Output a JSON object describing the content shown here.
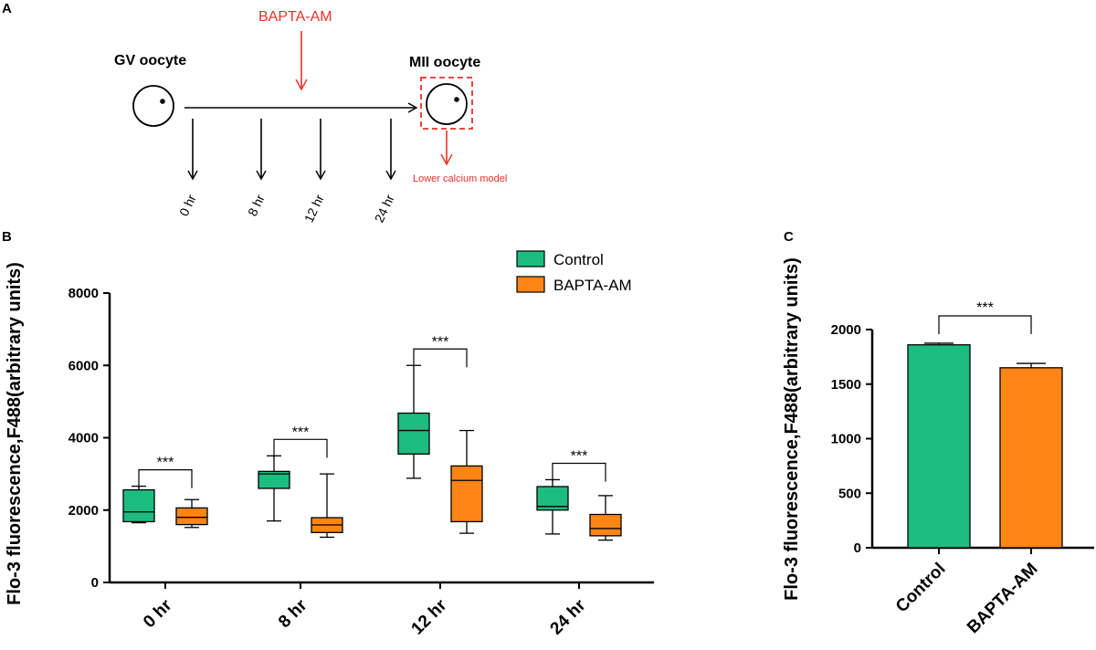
{
  "panels": {
    "a": "A",
    "b": "B",
    "c": "C"
  },
  "schema": {
    "drug": "BAPTA-AM",
    "start_label": "GV oocyte",
    "end_label": "MII oocyte",
    "model_label": "Lower calcium model",
    "timepoints": [
      "0 hr",
      "8 hr",
      "12 hr",
      "24 hr"
    ],
    "colors": {
      "arrow": "#000000",
      "drug": "#e8312a"
    }
  },
  "chart_data": [
    {
      "type": "box",
      "panel": "B",
      "title": "",
      "ylabel": "Flo-3 fluorescence,F488(arbitrary units)",
      "xlabel": "",
      "ylim": [
        0,
        8000
      ],
      "yticks": [
        "0",
        "2000",
        "4000",
        "6000",
        "8000"
      ],
      "categories": [
        "0 hr",
        "8 hr",
        "12 hr",
        "24 hr"
      ],
      "series": [
        {
          "name": "Control",
          "color": "#1dbd7f",
          "boxes": [
            {
              "min": 1650,
              "q1": 1680,
              "median": 1950,
              "q3": 2560,
              "max": 2660
            },
            {
              "min": 1700,
              "q1": 2600,
              "median": 3000,
              "q3": 3070,
              "max": 3500
            },
            {
              "min": 2880,
              "q1": 3550,
              "median": 4200,
              "q3": 4680,
              "max": 6000
            },
            {
              "min": 1340,
              "q1": 2000,
              "median": 2100,
              "q3": 2650,
              "max": 2840
            }
          ]
        },
        {
          "name": "BAPTA-AM",
          "color": "#ff8515",
          "boxes": [
            {
              "min": 1520,
              "q1": 1600,
              "median": 1800,
              "q3": 2060,
              "max": 2290
            },
            {
              "min": 1250,
              "q1": 1380,
              "median": 1590,
              "q3": 1790,
              "max": 3000
            },
            {
              "min": 1360,
              "q1": 1680,
              "median": 2820,
              "q3": 3220,
              "max": 4200
            },
            {
              "min": 1170,
              "q1": 1290,
              "median": 1490,
              "q3": 1880,
              "max": 2400
            }
          ]
        }
      ],
      "significance": [
        "***",
        "***",
        "***",
        "***"
      ]
    },
    {
      "type": "bar",
      "panel": "C",
      "title": "",
      "ylabel": "Flo-3 fluorescence,F488(arbitrary units)",
      "xlabel": "",
      "ylim": [
        0,
        2000
      ],
      "yticks": [
        "0",
        "500",
        "1000",
        "1500",
        "2000"
      ],
      "categories": [
        "Control",
        "BAPTA-AM"
      ],
      "values": [
        1860,
        1650
      ],
      "errors": [
        15,
        40
      ],
      "colors": [
        "#1dbd7f",
        "#ff8515"
      ],
      "significance": "***"
    }
  ]
}
